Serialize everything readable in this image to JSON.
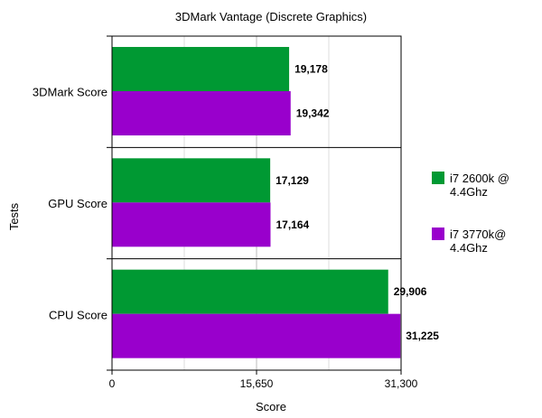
{
  "chart_data": {
    "type": "bar",
    "orientation": "horizontal",
    "title": "3DMark Vantage (Discrete Graphics)",
    "xlabel": "Score",
    "ylabel": "Tests",
    "xlim": [
      0,
      31300
    ],
    "ticks": [
      "0",
      "15,650",
      "31,300"
    ],
    "categories": [
      "3DMark Score",
      "GPU Score",
      "CPU Score"
    ],
    "series": [
      {
        "name": "i7 2600k @ 4.4Ghz",
        "color": "#009933",
        "values": [
          19178,
          17129,
          29906
        ],
        "labels": [
          "19,178",
          "17,129",
          "29,906"
        ]
      },
      {
        "name": "i7 3770k@ 4.4Ghz",
        "color": "#9900cc",
        "values": [
          19342,
          17164,
          31225
        ],
        "labels": [
          "19,342",
          "17,164",
          "31,225"
        ]
      }
    ],
    "legend_position": "right",
    "grid": true
  }
}
